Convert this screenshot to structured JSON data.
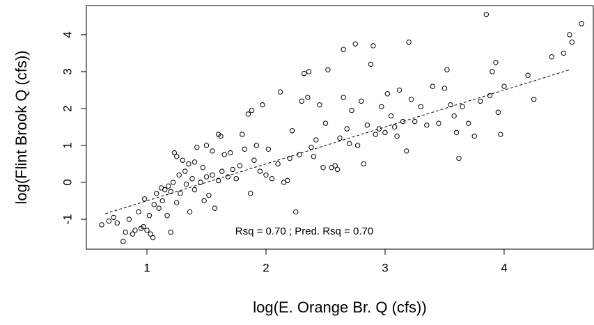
{
  "chart_data": {
    "type": "scatter",
    "xlabel": "log(E. Orange Br. Q (cfs))",
    "ylabel": "log(Flint Brook Q (cfs))",
    "annotation": "Rsq = 0.70 ; Pred. Rsq = 0.70",
    "xlim": [
      0.491,
      4.749
    ],
    "ylim": [
      -1.81,
      4.79
    ],
    "xticks": [
      1,
      2,
      3,
      4
    ],
    "yticks": [
      -1,
      0,
      1,
      2,
      3,
      4
    ],
    "color": "#000000",
    "x": [
      0.62,
      0.68,
      0.72,
      0.75,
      0.8,
      0.82,
      0.85,
      0.88,
      0.9,
      0.93,
      0.95,
      0.97,
      0.98,
      1.0,
      1.02,
      1.03,
      1.05,
      1.06,
      1.08,
      1.1,
      1.12,
      1.13,
      1.15,
      1.17,
      1.18,
      1.2,
      1.2,
      1.22,
      1.23,
      1.25,
      1.25,
      1.27,
      1.28,
      1.3,
      1.32,
      1.33,
      1.35,
      1.36,
      1.38,
      1.4,
      1.4,
      1.42,
      1.45,
      1.47,
      1.48,
      1.5,
      1.5,
      1.52,
      1.55,
      1.55,
      1.57,
      1.6,
      1.6,
      1.62,
      1.63,
      1.65,
      1.68,
      1.7,
      1.72,
      1.75,
      1.78,
      1.8,
      1.82,
      1.85,
      1.87,
      1.88,
      1.9,
      1.92,
      1.95,
      1.97,
      2.0,
      2.02,
      2.05,
      2.1,
      2.12,
      2.15,
      2.18,
      2.2,
      2.22,
      2.25,
      2.28,
      2.3,
      2.32,
      2.35,
      2.36,
      2.38,
      2.4,
      2.42,
      2.45,
      2.48,
      2.5,
      2.52,
      2.55,
      2.58,
      2.6,
      2.62,
      2.65,
      2.65,
      2.68,
      2.7,
      2.72,
      2.75,
      2.77,
      2.8,
      2.82,
      2.85,
      2.88,
      2.9,
      2.92,
      2.95,
      2.97,
      3.0,
      3.02,
      3.05,
      3.08,
      3.1,
      3.12,
      3.15,
      3.18,
      3.2,
      3.22,
      3.25,
      3.3,
      3.35,
      3.4,
      3.45,
      3.5,
      3.52,
      3.55,
      3.58,
      3.6,
      3.62,
      3.65,
      3.7,
      3.75,
      3.8,
      3.85,
      3.88,
      3.9,
      3.93,
      3.95,
      3.97,
      4.0,
      4.2,
      4.25,
      4.4,
      4.5,
      4.55,
      4.57,
      4.65
    ],
    "y": [
      -1.15,
      -1.05,
      -0.95,
      -1.1,
      -1.6,
      -1.35,
      -1.0,
      -1.4,
      -1.3,
      -0.8,
      -1.25,
      -1.2,
      -0.45,
      -1.3,
      -0.9,
      -1.4,
      -1.5,
      -0.6,
      -0.3,
      -0.7,
      -0.15,
      -0.5,
      -0.2,
      -0.9,
      -0.1,
      -0.25,
      -1.35,
      0.0,
      0.8,
      -0.55,
      0.7,
      0.2,
      -0.3,
      0.6,
      0.3,
      -0.05,
      0.5,
      -0.8,
      0.1,
      -0.2,
      0.55,
      0.95,
      0.0,
      0.4,
      -0.5,
      1.0,
      0.15,
      -0.35,
      0.85,
      0.2,
      -0.7,
      0.05,
      1.3,
      1.25,
      0.3,
      0.75,
      0.15,
      0.8,
      0.35,
      0.1,
      0.45,
      1.3,
      0.9,
      1.85,
      -0.3,
      1.95,
      0.6,
      1.0,
      0.3,
      2.1,
      0.2,
      0.9,
      0.1,
      0.5,
      2.45,
      0.0,
      0.05,
      0.65,
      1.4,
      -0.8,
      0.75,
      2.2,
      2.95,
      2.3,
      3.0,
      0.95,
      0.7,
      1.15,
      2.1,
      0.4,
      1.6,
      3.05,
      0.4,
      0.45,
      0.35,
      1.2,
      3.6,
      2.3,
      1.45,
      1.05,
      1.95,
      3.75,
      1.0,
      2.2,
      0.5,
      1.55,
      3.2,
      3.7,
      1.3,
      1.45,
      2.05,
      1.35,
      2.4,
      1.8,
      1.5,
      1.25,
      2.5,
      1.65,
      0.85,
      3.8,
      2.25,
      1.65,
      2.05,
      1.55,
      2.6,
      1.6,
      2.55,
      3.05,
      2.1,
      1.8,
      1.35,
      0.65,
      2.05,
      1.6,
      1.25,
      2.2,
      4.55,
      2.35,
      3.0,
      3.25,
      1.9,
      1.3,
      2.6,
      2.9,
      2.25,
      3.4,
      3.5,
      4.0,
      3.8,
      4.3
    ],
    "fit": {
      "x": [
        0.65,
        4.55
      ],
      "y": [
        -0.85,
        3.05
      ]
    }
  }
}
